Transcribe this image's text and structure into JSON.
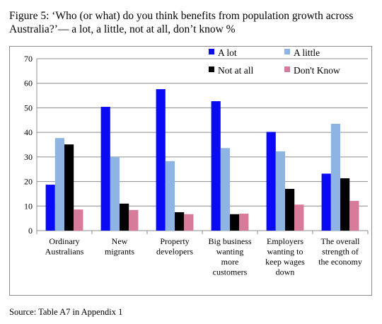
{
  "caption": "Figure 5: ‘Who (or what) do you think benefits from population growth across Australia?’— a lot, a little, not at all, don’t know %",
  "source": "Source: Table A7 in Appendix 1",
  "chart_data": {
    "type": "bar",
    "title": "",
    "xlabel": "",
    "ylabel": "",
    "ylim": [
      0,
      70
    ],
    "yticks": [
      0,
      10,
      20,
      30,
      40,
      50,
      60,
      70
    ],
    "grid": true,
    "legend_position": "top-right",
    "categories": [
      [
        "Ordinary",
        "Australians"
      ],
      [
        "New",
        "migrants"
      ],
      [
        "Property",
        "developers"
      ],
      [
        "Big business",
        "wanting",
        "more",
        "customers"
      ],
      [
        "Employers",
        "wanting to",
        "keep wages",
        "down"
      ],
      [
        "The overall",
        "strength of",
        "the economy"
      ]
    ],
    "series": [
      {
        "name": "A lot",
        "color": "#0a0af5",
        "values": [
          18.7,
          50.4,
          57.6,
          52.7,
          40.2,
          23.2
        ]
      },
      {
        "name": "A little",
        "color": "#8db4e2",
        "values": [
          37.7,
          30.0,
          28.3,
          33.6,
          32.3,
          43.5
        ]
      },
      {
        "name": "Not at all",
        "color": "#000000",
        "values": [
          35.1,
          11.0,
          7.5,
          6.7,
          17.0,
          21.3
        ]
      },
      {
        "name": "Don't Know",
        "color": "#d87a9a",
        "values": [
          8.6,
          8.4,
          6.7,
          6.9,
          10.6,
          12.1
        ]
      }
    ]
  }
}
